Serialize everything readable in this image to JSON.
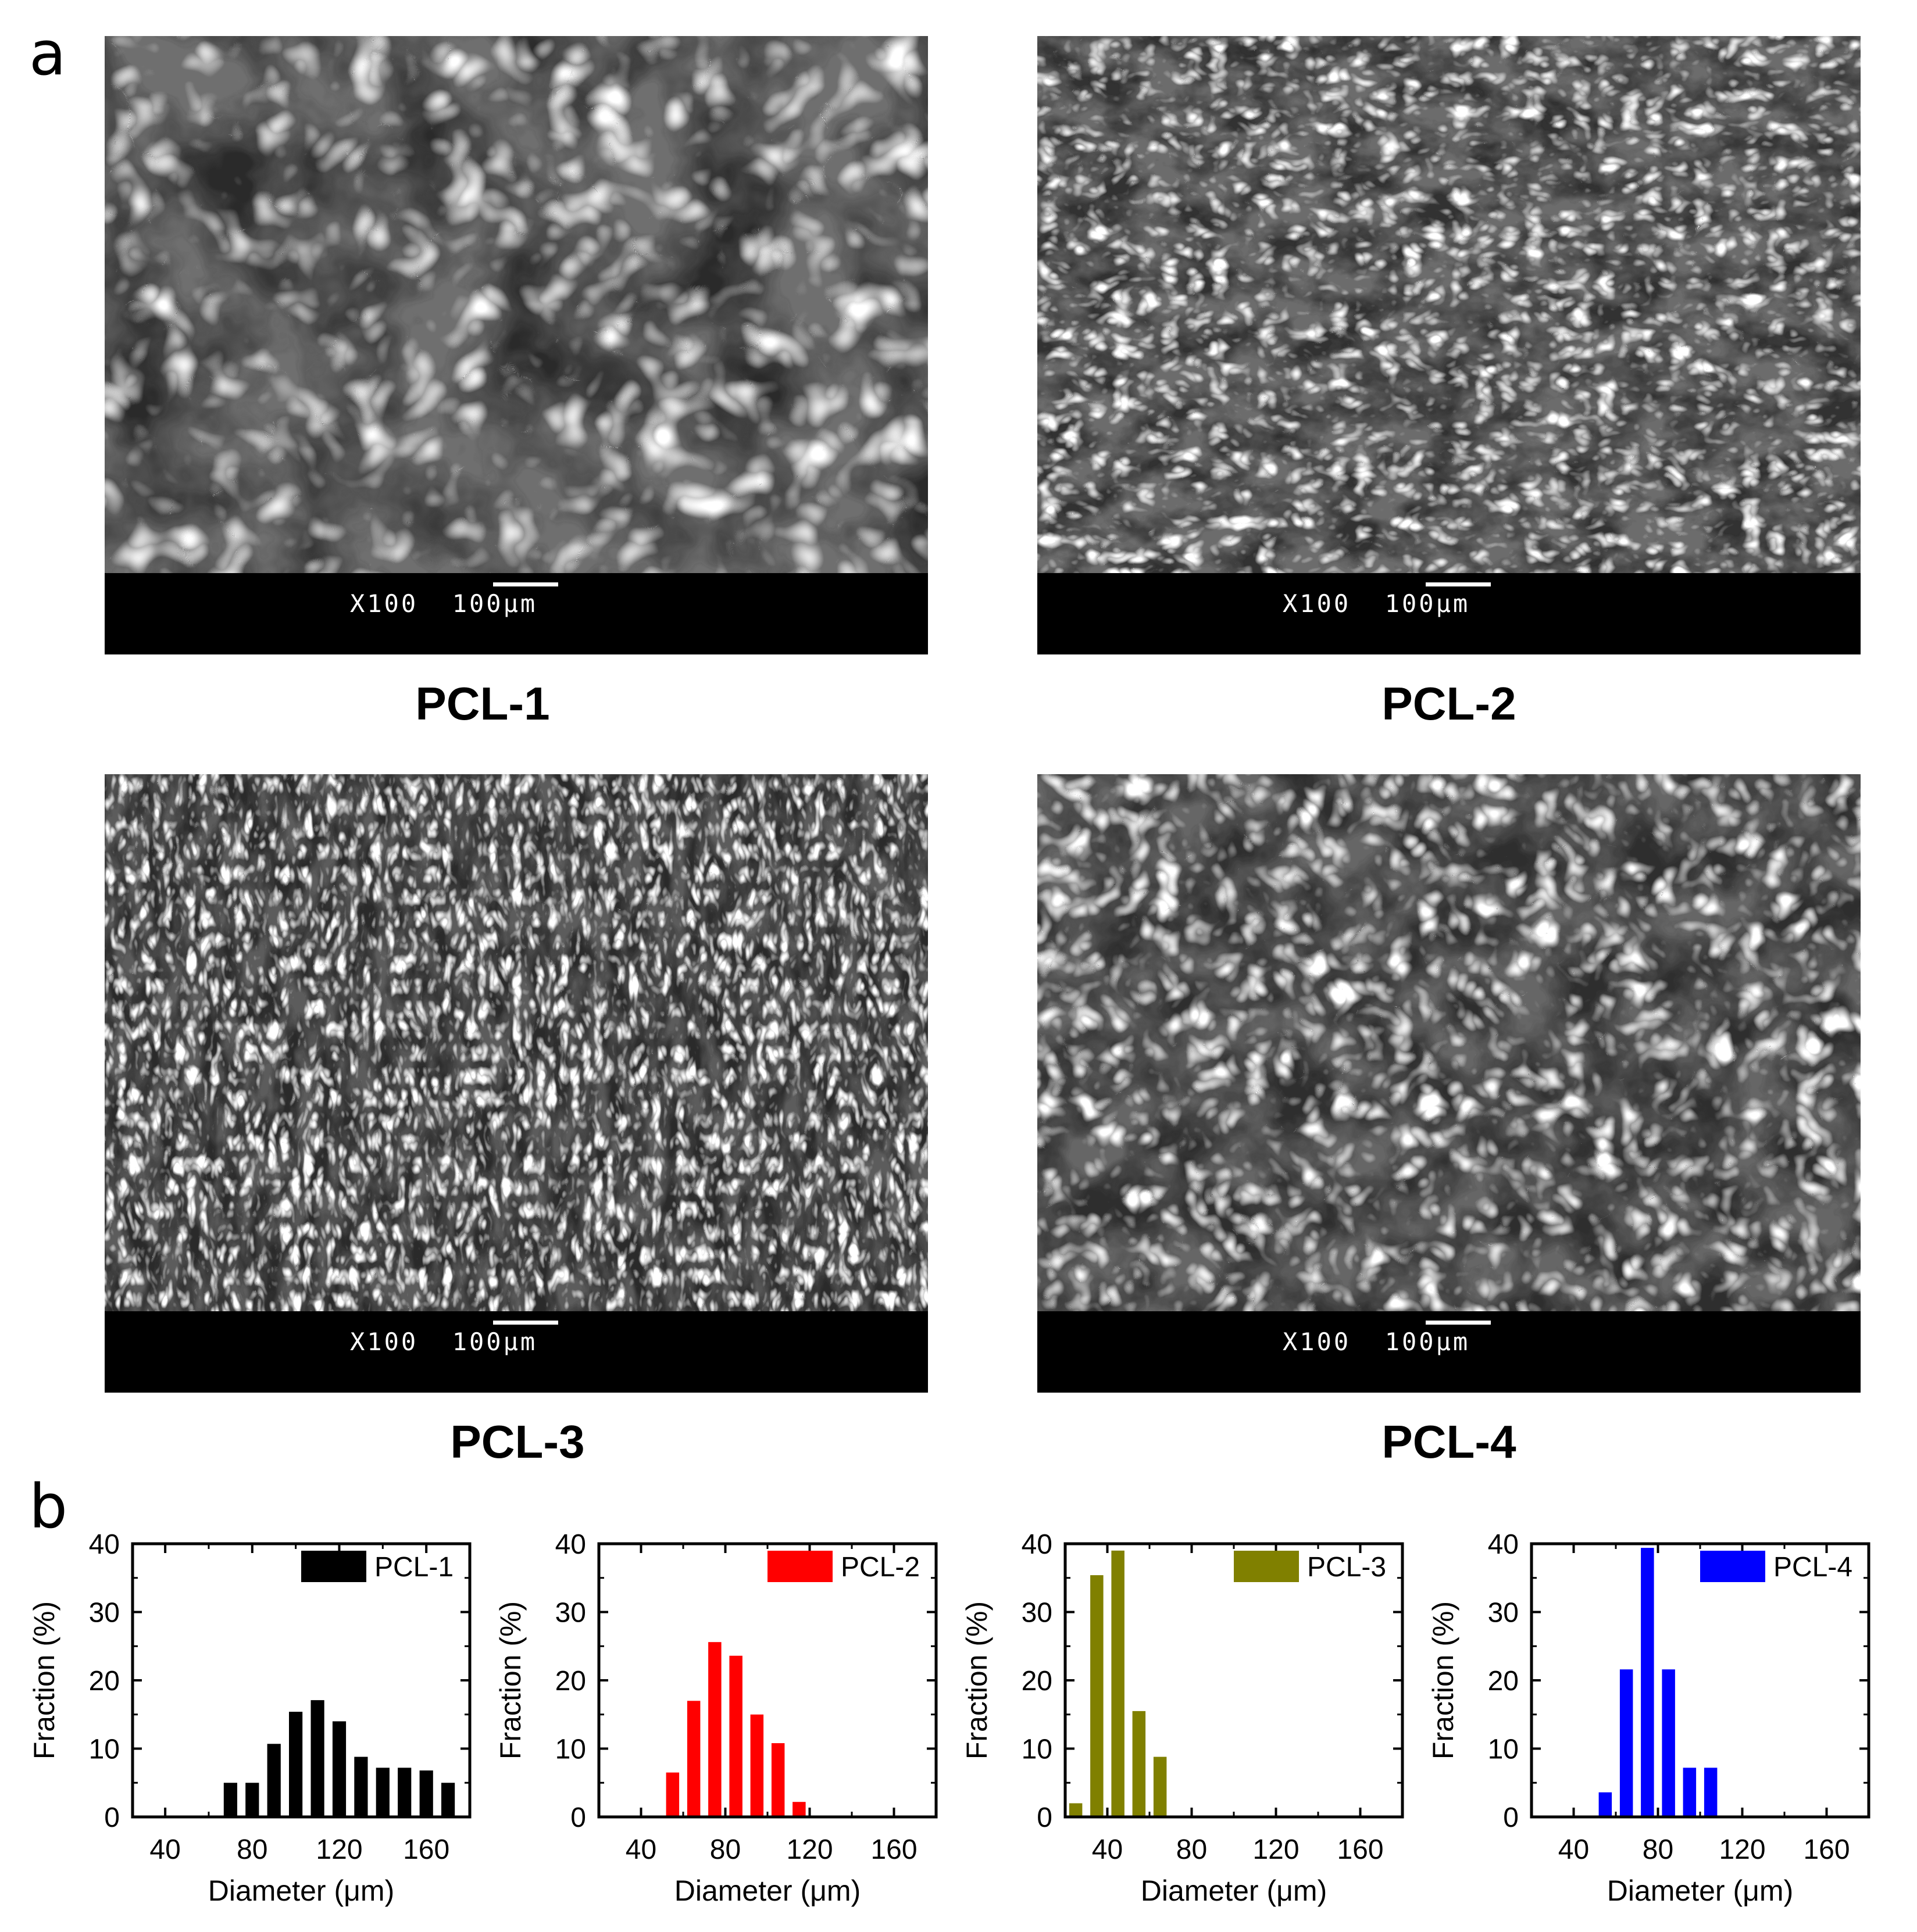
{
  "figure": {
    "panel_a_label": "a",
    "panel_b_label": "b"
  },
  "sem_panels": [
    {
      "name": "PCL-1",
      "magnification": "X100",
      "scale_bar": "100μm",
      "texture": "large-open-pores"
    },
    {
      "name": "PCL-2",
      "magnification": "X100",
      "scale_bar": "100μm",
      "texture": "medium-layered-pores"
    },
    {
      "name": "PCL-3",
      "magnification": "X100",
      "scale_bar": "100μm",
      "texture": "small-elongated-pores"
    },
    {
      "name": "PCL-4",
      "magnification": "X100",
      "scale_bar": "100μm",
      "texture": "medium-rounded-pores"
    }
  ],
  "chart_data": [
    {
      "type": "bar",
      "legend": "PCL-1",
      "color": "#000000",
      "xlabel": "Diameter (μm)",
      "ylabel": "Fraction (%)",
      "xlim": [
        25,
        180
      ],
      "ylim": [
        0,
        40
      ],
      "xticks": [
        40,
        80,
        120,
        160
      ],
      "yticks": [
        0,
        10,
        20,
        30,
        40
      ],
      "bin_width": 10,
      "x": [
        70,
        80,
        90,
        100,
        110,
        120,
        130,
        140,
        150,
        160,
        170
      ],
      "values": [
        5.0,
        5.0,
        10.7,
        15.4,
        17.1,
        14.0,
        8.8,
        7.2,
        7.2,
        6.8,
        5.0
      ]
    },
    {
      "type": "bar",
      "legend": "PCL-2",
      "color": "#ff0000",
      "xlabel": "Diameter (μm)",
      "ylabel": "Fraction (%)",
      "xlim": [
        20,
        180
      ],
      "ylim": [
        0,
        40
      ],
      "xticks": [
        40,
        80,
        120,
        160
      ],
      "yticks": [
        0,
        10,
        20,
        30,
        40
      ],
      "bin_width": 10,
      "x": [
        55,
        65,
        75,
        85,
        95,
        105,
        115
      ],
      "values": [
        6.5,
        17.0,
        25.6,
        23.6,
        15.0,
        10.8,
        2.2
      ]
    },
    {
      "type": "bar",
      "legend": "PCL-3",
      "color": "#808000",
      "xlabel": "Diameter (μm)",
      "ylabel": "Fraction (%)",
      "xlim": [
        20,
        180
      ],
      "ylim": [
        0,
        40
      ],
      "xticks": [
        40,
        80,
        120,
        160
      ],
      "yticks": [
        0,
        10,
        20,
        30,
        40
      ],
      "bin_width": 10,
      "x": [
        25,
        35,
        45,
        55,
        65
      ],
      "values": [
        2.0,
        35.4,
        39.0,
        15.5,
        8.8
      ]
    },
    {
      "type": "bar",
      "legend": "PCL-4",
      "color": "#0000ff",
      "xlabel": "Diameter (μm)",
      "ylabel": "Fraction (%)",
      "xlim": [
        20,
        180
      ],
      "ylim": [
        0,
        40
      ],
      "xticks": [
        40,
        80,
        120,
        160
      ],
      "yticks": [
        0,
        10,
        20,
        30,
        40
      ],
      "bin_width": 10,
      "x": [
        55,
        65,
        75,
        85,
        95,
        105
      ],
      "values": [
        3.6,
        21.6,
        39.4,
        21.6,
        7.2,
        7.2
      ]
    }
  ]
}
